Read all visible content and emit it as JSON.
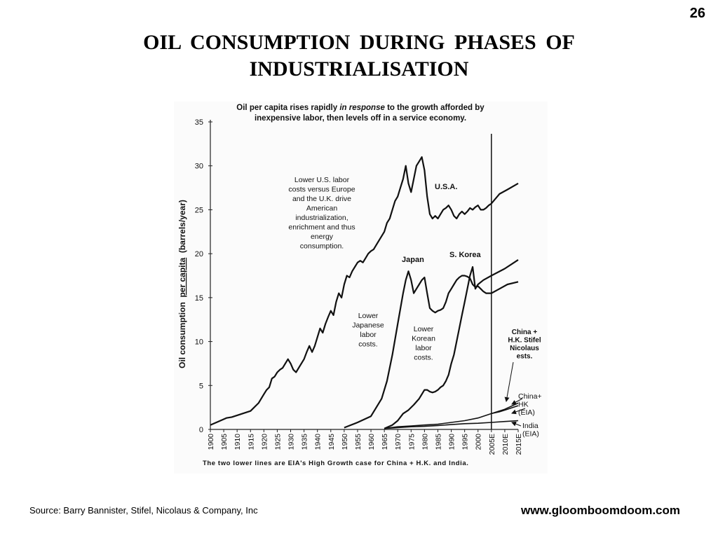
{
  "page_number": "26",
  "title_line1": "OIL  CONSUMPTION  DURING  PHASES  OF",
  "title_line2": "INDUSTRIALISATION",
  "source": "Source: Barry Bannister, Stifel, Nicolaus & Company, Inc",
  "website": "www.gloomboomdoom.com",
  "chart_data": {
    "type": "line",
    "title_line1": "Oil per capita rises rapidly in response to the growth afforded by",
    "title_line1_parts": [
      "Oil per capita rises rapidly ",
      "in response",
      " to the growth afforded by"
    ],
    "title_line2": "inexpensive labor, then levels off in a service economy.",
    "ylabel_parts": [
      "Oil consumption  ",
      "per capita",
      "  (barrels/year)"
    ],
    "ylim": [
      0,
      35
    ],
    "yticks": [
      0,
      5,
      10,
      15,
      20,
      25,
      30,
      35
    ],
    "x_categories": [
      "1900",
      "1905",
      "1910",
      "1915",
      "1920",
      "1925",
      "1930",
      "1935",
      "1940",
      "1945",
      "1950",
      "1955",
      "1960",
      "1965",
      "1970",
      "1975",
      "1980",
      "1985",
      "1990",
      "1995",
      "2000",
      "2005E",
      "2010E",
      "2015E"
    ],
    "x_category_values": [
      1900,
      1905,
      1910,
      1915,
      1920,
      1925,
      1930,
      1935,
      1940,
      1945,
      1950,
      1955,
      1960,
      1965,
      1970,
      1975,
      1980,
      1985,
      1990,
      1995,
      2000,
      2005,
      2010,
      2015
    ],
    "divider_year": 2005,
    "footnote": "The two lower lines are EIA's High Growth case for China + H.K. and India.",
    "annotations": {
      "us_note": [
        "Lower U.S. labor",
        "costs versus Europe",
        "and the U.K. drive",
        "American",
        "industrialization,",
        "enrichment and thus",
        "energy",
        "consumption."
      ],
      "japan_note": [
        "Lower",
        "Japanese",
        "labor",
        "costs."
      ],
      "korea_note": [
        "Lower",
        "Korean",
        "labor",
        "costs."
      ],
      "china_stifel": [
        "China +",
        "H.K. Stifel",
        "Nicolaus",
        "ests."
      ],
      "china_eia": [
        "China+",
        "HK",
        "(EIA)"
      ],
      "india_eia": [
        "India",
        "(EIA)"
      ]
    },
    "series": [
      {
        "name": "U.S.A.",
        "x": [
          1900,
          1903,
          1906,
          1908,
          1910,
          1912,
          1915,
          1918,
          1920,
          1921,
          1922,
          1923,
          1924,
          1925,
          1926,
          1927,
          1928,
          1929,
          1930,
          1931,
          1932,
          1933,
          1934,
          1935,
          1936,
          1937,
          1938,
          1939,
          1940,
          1941,
          1942,
          1943,
          1944,
          1945,
          1946,
          1947,
          1948,
          1949,
          1950,
          1951,
          1952,
          1953,
          1954,
          1955,
          1956,
          1957,
          1958,
          1959,
          1960,
          1961,
          1962,
          1963,
          1964,
          1965,
          1966,
          1967,
          1968,
          1969,
          1970,
          1971,
          1972,
          1973,
          1974,
          1975,
          1976,
          1977,
          1978,
          1979,
          1980,
          1981,
          1982,
          1983,
          1984,
          1985,
          1986,
          1987,
          1988,
          1989,
          1990,
          1991,
          1992,
          1993,
          1994,
          1995,
          1996,
          1997,
          1998,
          1999,
          2000,
          2001,
          2002,
          2003,
          2004,
          2005,
          2008,
          2011,
          2015
        ],
        "y": [
          0.5,
          0.9,
          1.3,
          1.4,
          1.6,
          1.8,
          2.1,
          3.0,
          4.0,
          4.5,
          4.8,
          5.8,
          6.0,
          6.5,
          6.8,
          7.0,
          7.5,
          8.0,
          7.5,
          6.8,
          6.5,
          7.0,
          7.5,
          8.0,
          8.8,
          9.5,
          8.8,
          9.5,
          10.5,
          11.5,
          11.0,
          12.0,
          12.8,
          13.5,
          13.0,
          14.5,
          15.5,
          15.0,
          16.5,
          17.5,
          17.3,
          18.0,
          18.5,
          19.0,
          19.2,
          19.0,
          19.5,
          20.0,
          20.3,
          20.5,
          21.0,
          21.5,
          22.0,
          22.5,
          23.5,
          24.0,
          25.0,
          26.0,
          26.5,
          27.5,
          28.5,
          30.0,
          28.0,
          27.0,
          28.5,
          30.0,
          30.5,
          31.0,
          29.5,
          26.5,
          24.5,
          24.0,
          24.3,
          24.0,
          24.5,
          25.0,
          25.2,
          25.5,
          25.0,
          24.3,
          24.0,
          24.5,
          24.8,
          24.5,
          24.8,
          25.2,
          25.0,
          25.3,
          25.5,
          25.0,
          25.0,
          25.2,
          25.5,
          25.7,
          26.8,
          27.3,
          28.0
        ]
      },
      {
        "name": "Japan",
        "x": [
          1950,
          1955,
          1960,
          1962,
          1964,
          1966,
          1968,
          1970,
          1972,
          1973,
          1974,
          1975,
          1976,
          1977,
          1978,
          1979,
          1980,
          1981,
          1982,
          1983,
          1984,
          1985,
          1986,
          1987,
          1988,
          1989,
          1990,
          1991,
          1992,
          1993,
          1994,
          1995,
          1996,
          1997,
          1998,
          1999,
          2000,
          2001,
          2002,
          2003,
          2004,
          2005,
          2008,
          2011,
          2015
        ],
        "y": [
          0.2,
          0.8,
          1.5,
          2.5,
          3.5,
          5.5,
          8.5,
          12.0,
          15.5,
          17.0,
          18.0,
          17.0,
          15.5,
          16.0,
          16.5,
          17.0,
          17.3,
          15.5,
          13.8,
          13.5,
          13.3,
          13.5,
          13.6,
          13.8,
          14.5,
          15.5,
          16.0,
          16.5,
          17.0,
          17.3,
          17.5,
          17.5,
          17.4,
          17.2,
          16.5,
          16.2,
          16.3,
          16.0,
          15.7,
          15.5,
          15.5,
          15.5,
          16.0,
          16.5,
          16.8
        ]
      },
      {
        "name": "S. Korea",
        "x": [
          1965,
          1968,
          1970,
          1972,
          1974,
          1976,
          1978,
          1979,
          1980,
          1981,
          1982,
          1983,
          1984,
          1985,
          1986,
          1987,
          1988,
          1989,
          1990,
          1991,
          1992,
          1993,
          1994,
          1995,
          1996,
          1997,
          1998,
          1999,
          2000,
          2002,
          2005,
          2010,
          2015
        ],
        "y": [
          0.1,
          0.5,
          1.0,
          1.8,
          2.2,
          2.8,
          3.5,
          4.0,
          4.5,
          4.5,
          4.3,
          4.2,
          4.3,
          4.5,
          4.8,
          5.0,
          5.5,
          6.2,
          7.5,
          8.5,
          10.0,
          11.5,
          13.0,
          14.5,
          16.0,
          17.5,
          18.5,
          16.0,
          16.5,
          17.0,
          17.5,
          18.3,
          19.3
        ]
      },
      {
        "name": "China+HK (EIA)",
        "x": [
          1965,
          1970,
          1975,
          1980,
          1985,
          1990,
          1995,
          2000,
          2005,
          2010,
          2015
        ],
        "y": [
          0.1,
          0.3,
          0.4,
          0.5,
          0.6,
          0.8,
          1.0,
          1.3,
          1.8,
          2.3,
          3.0
        ]
      },
      {
        "name": "China + H.K. Stifel Nicolaus ests.",
        "x": [
          2005,
          2008,
          2011,
          2013,
          2015
        ],
        "y": [
          1.8,
          2.0,
          2.3,
          2.5,
          2.7
        ]
      },
      {
        "name": "India (EIA)",
        "x": [
          1965,
          1970,
          1975,
          1980,
          1985,
          1990,
          1995,
          2000,
          2005,
          2010,
          2015
        ],
        "y": [
          0.1,
          0.2,
          0.3,
          0.35,
          0.45,
          0.55,
          0.65,
          0.7,
          0.8,
          0.9,
          1.0
        ]
      }
    ],
    "series_labels": [
      "U.S.A.",
      "Japan",
      "S. Korea"
    ],
    "grid": false,
    "legend": "none"
  }
}
